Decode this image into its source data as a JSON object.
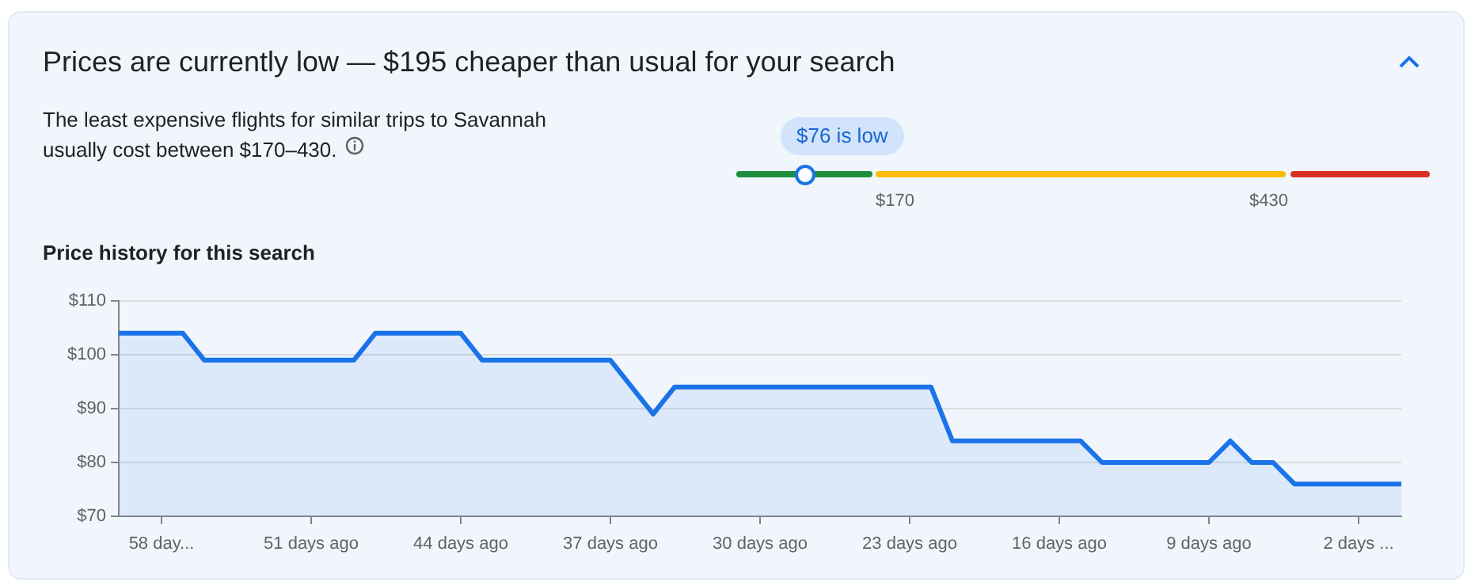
{
  "chart_data": {
    "type": "area",
    "title": "Prices are currently low — $195 cheaper than usual for your search",
    "subtitle": "The least expensive flights for similar trips to Savannah usually cost between $170–430.",
    "annotations": [
      "$76 is low",
      "$170",
      "$430",
      "Price history for this search"
    ],
    "x": [
      60,
      57,
      56,
      49,
      48,
      44,
      43,
      37,
      35,
      34,
      22,
      21,
      15,
      14,
      9,
      8,
      7,
      6,
      5,
      0
    ],
    "series": [
      {
        "color": "#1a73e8",
        "values": [
          104,
          104,
          99,
          99,
          104,
          104,
          99,
          99,
          89,
          94,
          94,
          84,
          84,
          80,
          80,
          84,
          80,
          80,
          76,
          76
        ]
      }
    ],
    "xlim": [
      60,
      0
    ],
    "xticks": [
      {
        "value": 58,
        "label": "58 day..."
      },
      {
        "value": 51,
        "label": "51 days ago"
      },
      {
        "value": 44,
        "label": "44 days ago"
      },
      {
        "value": 37,
        "label": "37 days ago"
      },
      {
        "value": 30,
        "label": "30 days ago"
      },
      {
        "value": 23,
        "label": "23 days ago"
      },
      {
        "value": 16,
        "label": "16 days ago"
      },
      {
        "value": 9,
        "label": "9 days ago"
      },
      {
        "value": 2,
        "label": "2 days ..."
      }
    ],
    "ylim": [
      70,
      110
    ],
    "yticks": [
      {
        "value": 70,
        "label": "$70"
      },
      {
        "value": 80,
        "label": "$80"
      },
      {
        "value": 90,
        "label": "$90"
      },
      {
        "value": 100,
        "label": "$100"
      },
      {
        "value": 110,
        "label": "$110"
      }
    ],
    "grid": "y",
    "legend": false,
    "marker": "none",
    "line_style": "solid"
  }
}
